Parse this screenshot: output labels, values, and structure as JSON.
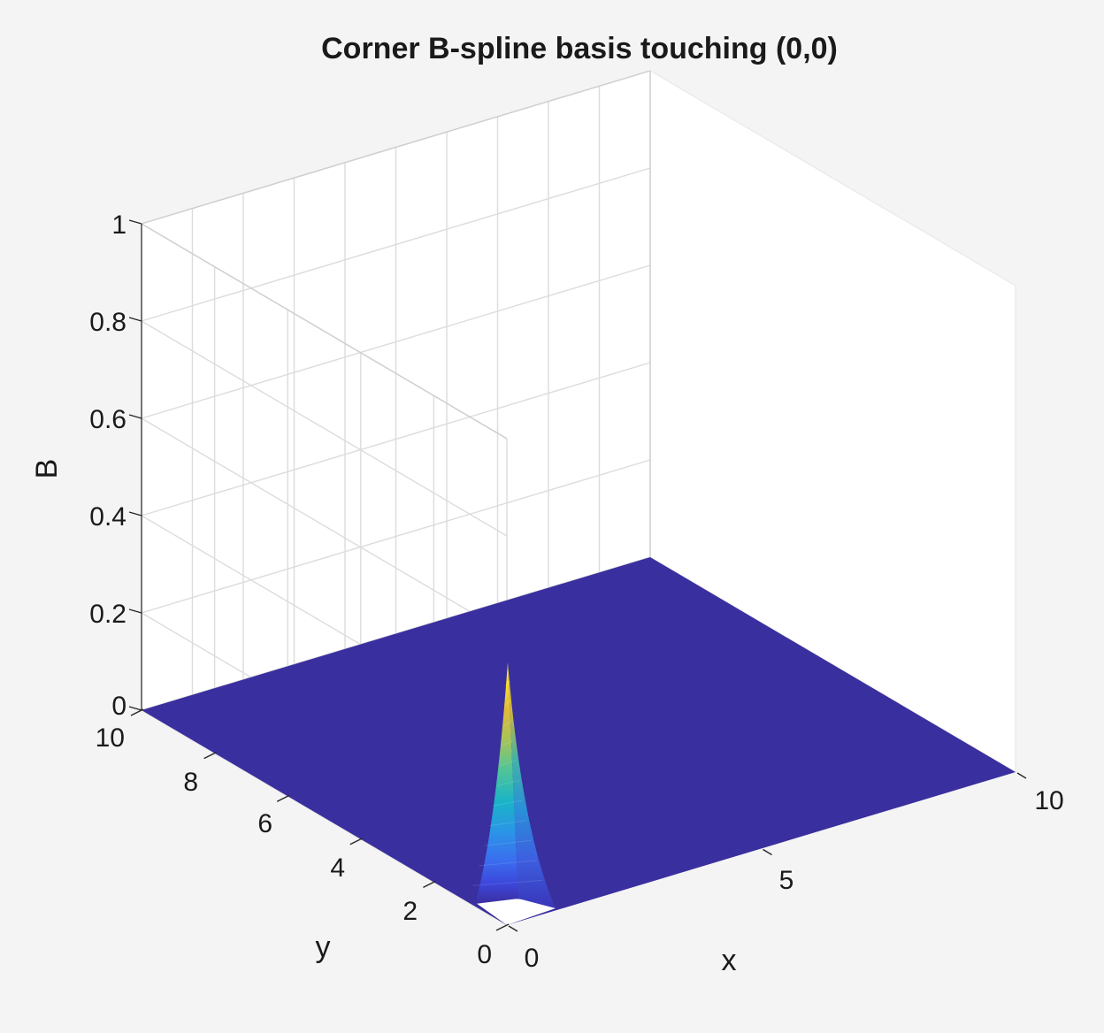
{
  "chart_data": {
    "type": "surface",
    "title": "Corner B-spline basis touching (0,0)",
    "xlabel": "x",
    "ylabel": "y",
    "zlabel": "B",
    "xlim": [
      0,
      10
    ],
    "ylim": [
      0,
      10
    ],
    "zlim": [
      0,
      1
    ],
    "x_ticks": [
      "0",
      "5",
      "10"
    ],
    "y_ticks": [
      "0",
      "2",
      "4",
      "6",
      "8",
      "10"
    ],
    "z_ticks": [
      "0",
      "0.2",
      "0.4",
      "0.6",
      "0.8",
      "1"
    ],
    "grid": true,
    "colormap": "parula",
    "colors": {
      "figure_background": "#f4f4f4",
      "axes_background": "#ffffff",
      "surface_base": "#3a2f9f",
      "grid": "#dcdcdc"
    },
    "surface": {
      "description_peak_location": [
        0,
        0
      ],
      "peak_value": 0.54,
      "base_value": 0
    }
  }
}
